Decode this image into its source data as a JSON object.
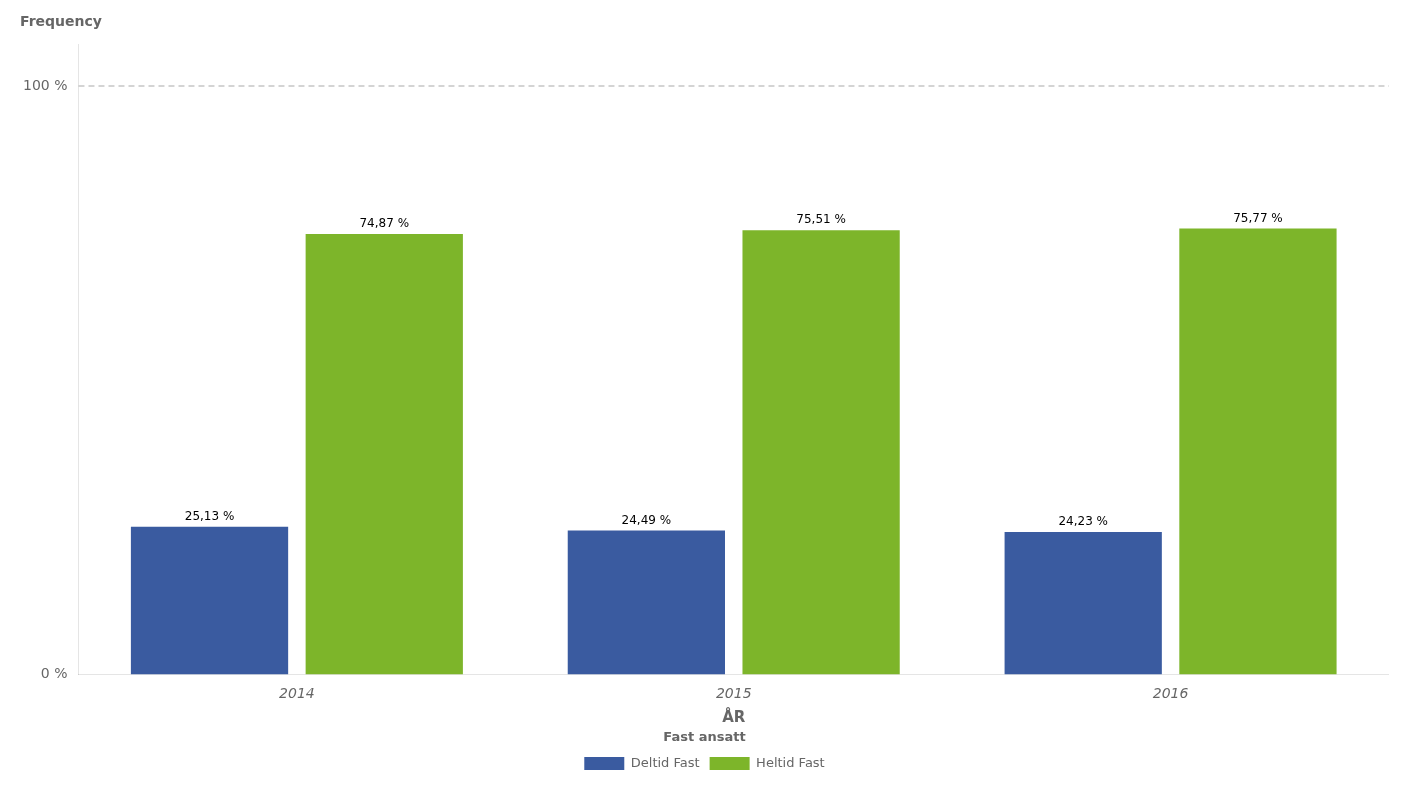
{
  "chart_data": {
    "type": "bar",
    "categories": [
      "2014",
      "2015",
      "2016"
    ],
    "series": [
      {
        "name": "Deltid Fast",
        "color": "#3A5BA0",
        "values": [
          25.13,
          24.49,
          24.23
        ],
        "value_labels": [
          "25,13 %",
          "24,49 %",
          "24,23 %"
        ]
      },
      {
        "name": "Heltid Fast",
        "color": "#7DB52A",
        "values": [
          74.87,
          75.51,
          75.77
        ],
        "value_labels": [
          "74,87 %",
          "75,51 %",
          "75,77 %"
        ]
      }
    ],
    "ylabel": "Frequency",
    "xlabel": "ÅR",
    "legend_title": "Fast ansatt",
    "legend": "bottom",
    "ylim": [
      0,
      107
    ],
    "yticks": [
      {
        "value": 0,
        "label": "0 %"
      },
      {
        "value": 100,
        "label": "100 %"
      }
    ],
    "hline": {
      "y": 100,
      "color": "#aaaaaa",
      "line_style": "dashed"
    },
    "grid": false,
    "data_labels": true
  }
}
